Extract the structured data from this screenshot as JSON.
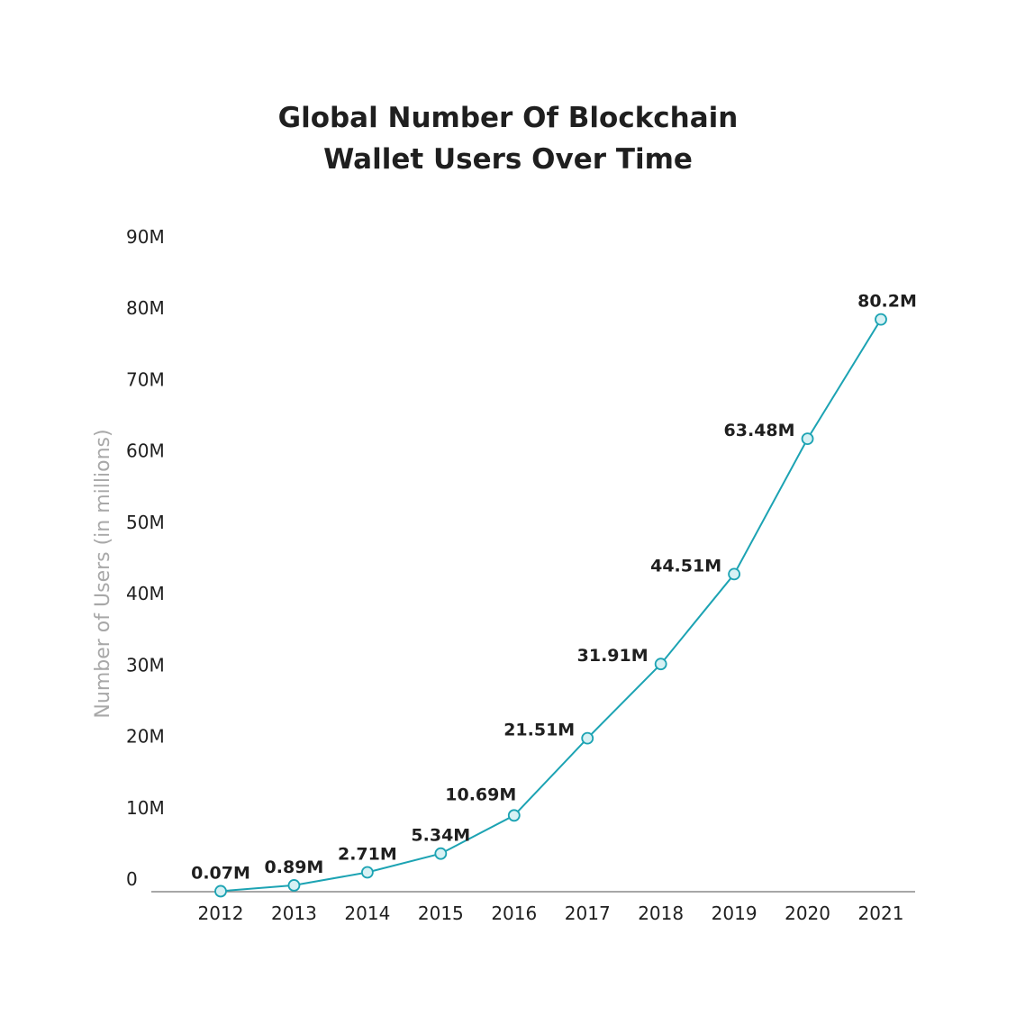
{
  "colors": {
    "line": "#1ca3b3",
    "marker_fill": "#d7f1f4",
    "axis": "#8a8a8a",
    "text": "#1f1f1f",
    "ylabel": "#a8a8a8"
  },
  "chart_data": {
    "type": "line",
    "title": "Global Number Of Blockchain Wallet Users Over Time",
    "title_lines": [
      "Global Number Of Blockchain",
      "Wallet Users Over Time"
    ],
    "xlabel": "",
    "ylabel": "Number of Users (in millions)",
    "ylim": [
      0,
      90
    ],
    "yticks": [
      0,
      10,
      20,
      30,
      40,
      50,
      60,
      70,
      80,
      90
    ],
    "ytick_labels": [
      "0",
      "10M",
      "20M",
      "30M",
      "40M",
      "50M",
      "60M",
      "70M",
      "80M",
      "90M"
    ],
    "categories": [
      "2012",
      "2013",
      "2014",
      "2015",
      "2016",
      "2017",
      "2018",
      "2019",
      "2020",
      "2021"
    ],
    "grid": false,
    "legend": "none",
    "series": [
      {
        "values": [
          0.07,
          0.89,
          2.71,
          5.34,
          10.69,
          21.51,
          31.91,
          44.51,
          63.48,
          80.2
        ],
        "labels": [
          "0.07M",
          "0.89M",
          "2.71M",
          "5.34M",
          "10.69M",
          "21.51M",
          "31.91M",
          "44.51M",
          "63.48M",
          "80.2M"
        ]
      }
    ]
  }
}
